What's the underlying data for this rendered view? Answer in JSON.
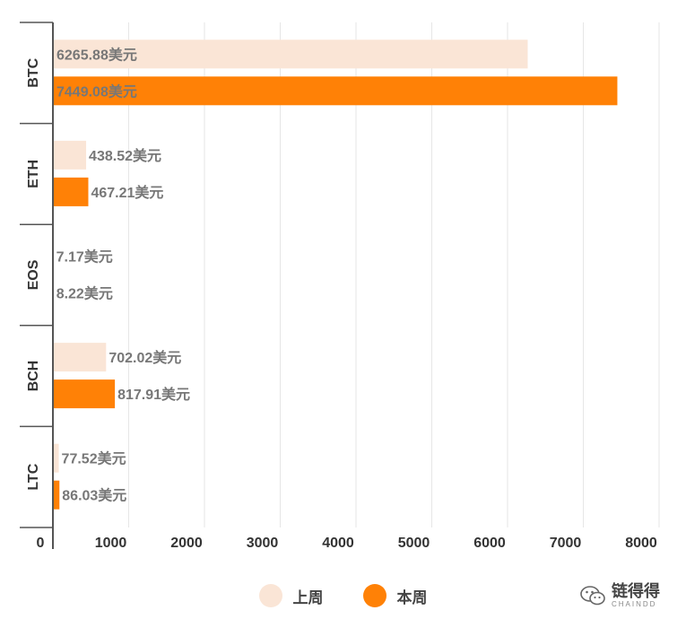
{
  "chart_data": {
    "type": "bar",
    "orientation": "horizontal",
    "categories": [
      "BTC",
      "ETH",
      "EOS",
      "BCH",
      "LTC"
    ],
    "series": [
      {
        "name": "上周",
        "values": [
          6265.88,
          438.52,
          7.17,
          702.02,
          77.52
        ],
        "labels": [
          "6265.88美元",
          "438.52美元",
          "7.17美元",
          "702.02美元",
          "77.52美元"
        ],
        "color": "#fae5d6"
      },
      {
        "name": "本周",
        "values": [
          7449.08,
          467.21,
          8.22,
          817.91,
          86.03
        ],
        "labels": [
          "7449.08美元",
          "467.21美元",
          "8.22美元",
          "817.91美元",
          "86.03美元"
        ],
        "color": "#ff8106"
      }
    ],
    "x_ticks": [
      0,
      1000,
      2000,
      3000,
      4000,
      5000,
      6000,
      7000,
      8000
    ],
    "xlim": [
      0,
      8000
    ],
    "grid": true,
    "legend_position": "bottom-center"
  },
  "watermark": {
    "text": "链得得",
    "subtext": "CHAINDD"
  }
}
